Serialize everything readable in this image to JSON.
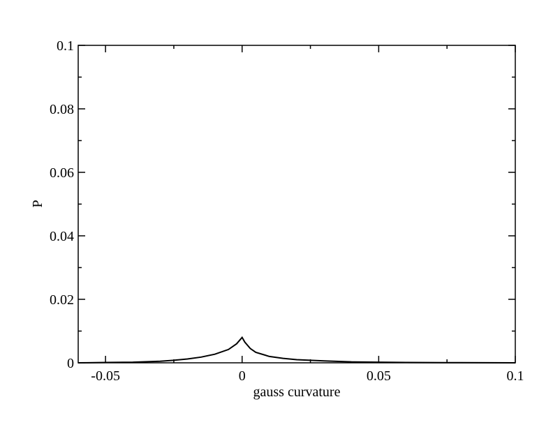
{
  "chart_data": {
    "type": "line",
    "x_label": "gauss curvature",
    "y_label": "P",
    "x": [
      -0.06,
      -0.05,
      -0.04,
      -0.03,
      -0.025,
      -0.02,
      -0.015,
      -0.01,
      -0.005,
      -0.002,
      0,
      0.001,
      0.003,
      0.005,
      0.01,
      0.015,
      0.02,
      0.03,
      0.04,
      0.05,
      0.06,
      0.08,
      0.1
    ],
    "series": [
      {
        "color": "#000000",
        "values": [
          0,
          0.0001,
          0.0002,
          0.0005,
          0.0008,
          0.0012,
          0.0018,
          0.0027,
          0.0042,
          0.006,
          0.008,
          0.0065,
          0.0045,
          0.0033,
          0.002,
          0.0014,
          0.001,
          0.0006,
          0.0003,
          0.0002,
          0.0001,
          5e-05,
          0
        ]
      }
    ],
    "xlim": [
      -0.06,
      0.1
    ],
    "ylim": [
      0,
      0.1
    ],
    "xticks": [
      -0.05,
      0,
      0.05,
      0.1
    ],
    "yticks": [
      0,
      0.02,
      0.04,
      0.06,
      0.08,
      0.1
    ],
    "x_minor_ticks": [
      -0.025,
      0.025,
      0.075
    ],
    "y_minor_ticks": [
      0.01,
      0.03,
      0.05,
      0.07,
      0.09
    ],
    "grid": false
  }
}
